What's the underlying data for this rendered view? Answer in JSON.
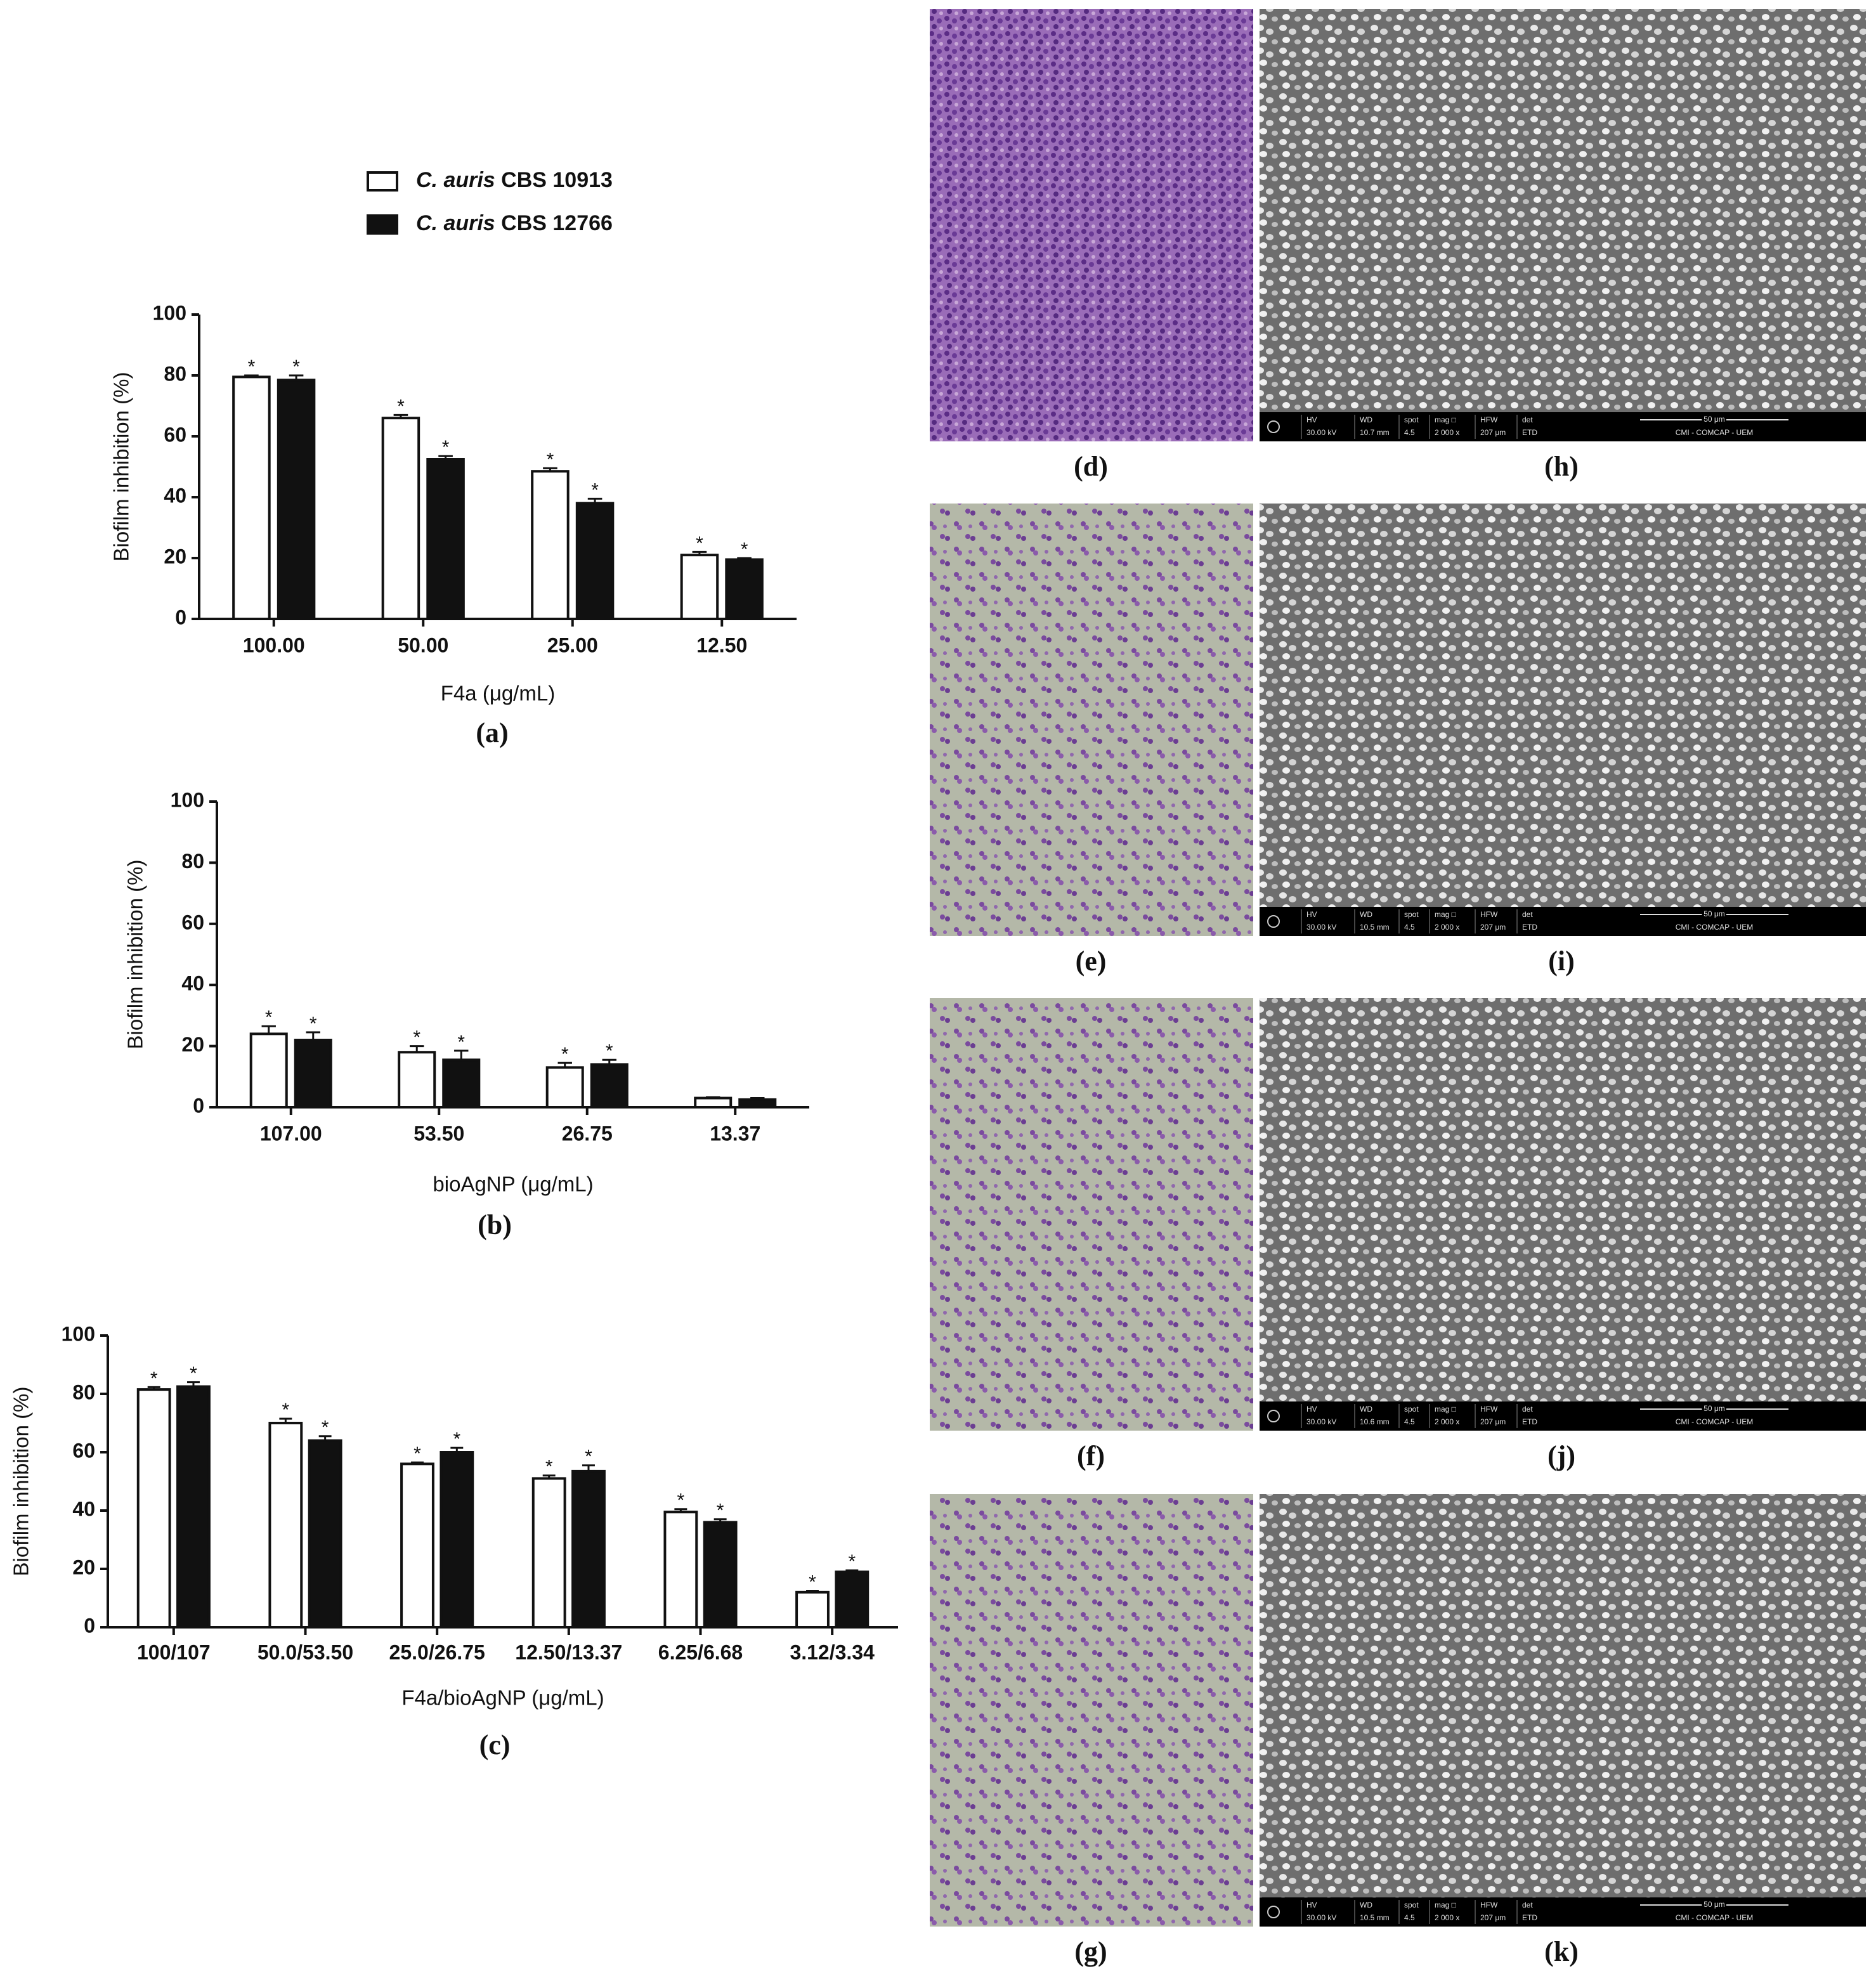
{
  "chart_data": [
    {
      "type": "bar",
      "panel_label": "(a)",
      "x_label": "F4a (μg/mL)",
      "y_label": "Biofilm inhibition (%)",
      "categories": [
        "100.00",
        "50.00",
        "25.00",
        "12.50"
      ],
      "ylim": [
        0,
        100
      ],
      "yticks": [
        0,
        20,
        40,
        60,
        80,
        100
      ],
      "series": [
        {
          "name": "C. auris CBS 10913",
          "color": "#ffffff",
          "values": [
            79.5,
            66,
            48.5,
            21
          ],
          "errors": [
            0.5,
            1,
            1,
            1
          ],
          "significance": [
            "*",
            "*",
            "*",
            "*"
          ]
        },
        {
          "name": "C. auris CBS 12766",
          "color": "#111111",
          "values": [
            78.5,
            52.5,
            38,
            19.5
          ],
          "errors": [
            1.5,
            1,
            1.5,
            0.5
          ],
          "significance": [
            "*",
            "*",
            "*",
            "*"
          ]
        }
      ]
    },
    {
      "type": "bar",
      "panel_label": "(b)",
      "x_label": "bioAgNP (μg/mL)",
      "y_label": "Biofilm inhibition (%)",
      "categories": [
        "107.00",
        "53.50",
        "26.75",
        "13.37"
      ],
      "ylim": [
        0,
        100
      ],
      "yticks": [
        0,
        20,
        40,
        60,
        80,
        100
      ],
      "series": [
        {
          "color": "#ffffff",
          "values": [
            24,
            18,
            13,
            3
          ],
          "errors": [
            2.5,
            2,
            1.5,
            0.3
          ],
          "significance": [
            "*",
            "*",
            "*",
            null
          ]
        },
        {
          "color": "#111111",
          "values": [
            22,
            15.5,
            14,
            2.5
          ],
          "errors": [
            2.5,
            3,
            1.5,
            0.5
          ],
          "significance": [
            "*",
            "*",
            "*",
            null
          ]
        }
      ]
    },
    {
      "type": "bar",
      "panel_label": "(c)",
      "x_label": "F4a/bioAgNP (μg/mL)",
      "y_label": "Biofilm inhibition (%)",
      "categories": [
        "100/107",
        "50.0/53.50",
        "25.0/26.75",
        "12.50/13.37",
        "6.25/6.68",
        "3.12/3.34"
      ],
      "ylim": [
        0,
        100
      ],
      "yticks": [
        0,
        20,
        40,
        60,
        80,
        100
      ],
      "series": [
        {
          "color": "#ffffff",
          "values": [
            81.5,
            70,
            56,
            51,
            39.5,
            12
          ],
          "errors": [
            0.8,
            1.5,
            0.5,
            1,
            1,
            0.5
          ],
          "significance": [
            "*",
            "*",
            "*",
            "*",
            "*",
            "*"
          ]
        },
        {
          "color": "#111111",
          "values": [
            82.5,
            64,
            60,
            53.5,
            36,
            19
          ],
          "errors": [
            1.5,
            1.5,
            1.5,
            2,
            1,
            0.5
          ],
          "significance": [
            "*",
            "*",
            "*",
            "*",
            "*",
            "*"
          ]
        }
      ]
    }
  ],
  "micrographs": [
    {
      "label": "(d)"
    },
    {
      "label": "(e)"
    },
    {
      "label": "(f)"
    },
    {
      "label": "(g)"
    }
  ],
  "sem": [
    {
      "label": "(h)",
      "fields": [
        [
          "HV",
          "30.00 kV"
        ],
        [
          "WD",
          "10.7 mm"
        ],
        [
          "spot",
          "4.5"
        ],
        [
          "mag □",
          "2 000 x"
        ],
        [
          "HFW",
          "207 μm"
        ],
        [
          "det",
          "ETD"
        ]
      ],
      "scale": "50 μm",
      "footer": "CMI - COMCAP - UEM"
    },
    {
      "label": "(i)",
      "fields": [
        [
          "HV",
          "30.00 kV"
        ],
        [
          "WD",
          "10.5 mm"
        ],
        [
          "spot",
          "4.5"
        ],
        [
          "mag □",
          "2 000 x"
        ],
        [
          "HFW",
          "207 μm"
        ],
        [
          "det",
          "ETD"
        ]
      ],
      "scale": "50 μm",
      "footer": "CMI - COMCAP - UEM"
    },
    {
      "label": "(j)",
      "fields": [
        [
          "HV",
          "30.00 kV"
        ],
        [
          "WD",
          "10.6 mm"
        ],
        [
          "spot",
          "4.5"
        ],
        [
          "mag □",
          "2 000 x"
        ],
        [
          "HFW",
          "207 μm"
        ],
        [
          "det",
          "ETD"
        ]
      ],
      "scale": "50 μm",
      "footer": "CMI - COMCAP - UEM"
    },
    {
      "label": "(k)",
      "fields": [
        [
          "HV",
          "30.00 kV"
        ],
        [
          "WD",
          "10.5 mm"
        ],
        [
          "spot",
          "4.5"
        ],
        [
          "mag □",
          "2 000 x"
        ],
        [
          "HFW",
          "207 μm"
        ],
        [
          "det",
          "ETD"
        ]
      ],
      "scale": "50 μm",
      "footer": "CMI - COMCAP - UEM"
    }
  ]
}
